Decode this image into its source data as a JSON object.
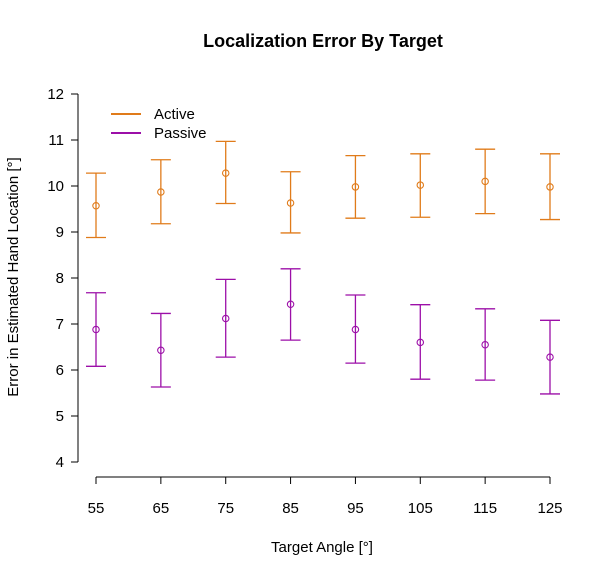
{
  "chart_data": {
    "type": "scatter",
    "title": "Localization Error By Target",
    "xlabel": "Target Angle [°]",
    "ylabel": "Error in Estimated Hand Location [°]",
    "x": [
      55,
      65,
      75,
      85,
      95,
      105,
      115,
      125
    ],
    "x_tick_labels": [
      "55",
      "65",
      "75",
      "85",
      "95",
      "105",
      "115",
      "125"
    ],
    "y_ticks": [
      4,
      5,
      6,
      7,
      8,
      9,
      10,
      11,
      12
    ],
    "y_tick_labels": [
      "4",
      "5",
      "6",
      "7",
      "8",
      "9",
      "10",
      "11",
      "12"
    ],
    "ylim": [
      4,
      12
    ],
    "grid": false,
    "legend_position": "top-left",
    "series": [
      {
        "name": "Active",
        "color": "#E07B1A",
        "values": [
          9.57,
          9.87,
          10.28,
          9.63,
          9.98,
          10.02,
          10.1,
          9.98
        ],
        "lower": [
          8.88,
          9.18,
          9.62,
          8.98,
          9.3,
          9.32,
          9.4,
          9.27
        ],
        "upper": [
          10.28,
          10.57,
          10.97,
          10.31,
          10.66,
          10.7,
          10.8,
          10.7
        ]
      },
      {
        "name": "Passive",
        "color": "#9C0FA8",
        "values": [
          6.88,
          6.43,
          7.12,
          7.43,
          6.88,
          6.6,
          6.55,
          6.28
        ],
        "lower": [
          6.08,
          5.63,
          6.28,
          6.65,
          6.15,
          5.8,
          5.78,
          5.48
        ],
        "upper": [
          7.68,
          7.23,
          7.97,
          8.2,
          7.63,
          7.42,
          7.33,
          7.08
        ]
      }
    ]
  }
}
